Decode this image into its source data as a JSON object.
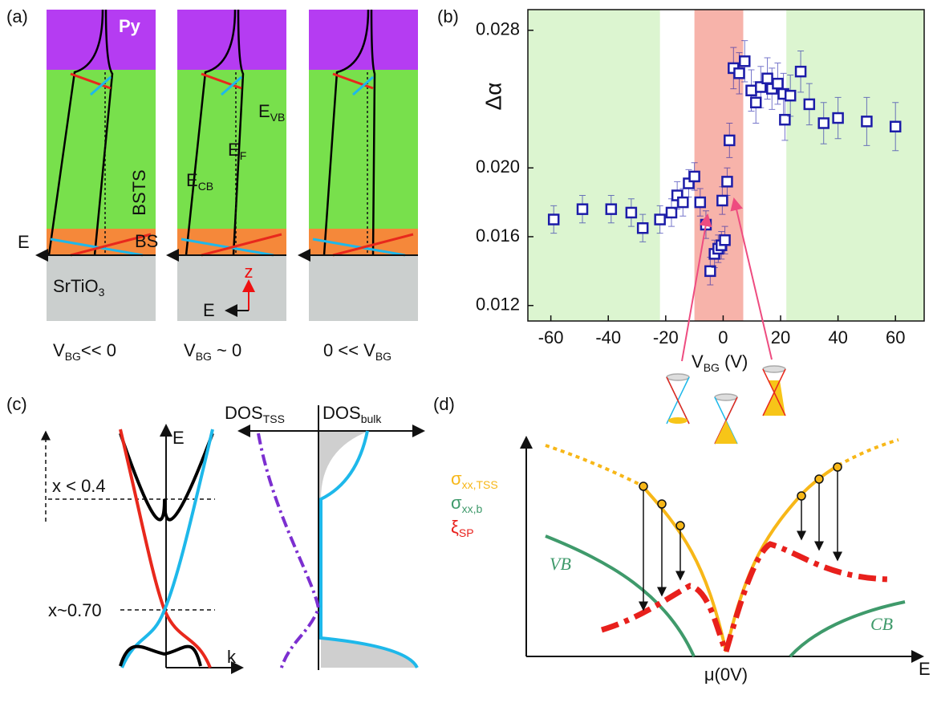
{
  "panels": {
    "a": {
      "label": "(a)",
      "py": "Py",
      "bsts": "BSTS",
      "bs": "BS",
      "substrate": {
        "main": "SrTiO",
        "sub": "3"
      },
      "axis_e": "E",
      "z": "z",
      "field_e": "E",
      "e_cb": {
        "main": "E",
        "sub": "CB"
      },
      "e_f": {
        "main": "E",
        "sub": "F"
      },
      "e_vb": {
        "main": "E",
        "sub": "VB"
      },
      "captions": [
        {
          "main": "V",
          "sub": "BG",
          "rest": "<< 0"
        },
        {
          "main": "V",
          "sub": "BG",
          "rest": " ~ 0"
        },
        {
          "main": "0 << V",
          "sub": "BG"
        }
      ]
    },
    "c": {
      "label": "(c)",
      "e": "E",
      "k": "k",
      "dos_tss": {
        "main": "DOS",
        "sub": "TSS"
      },
      "dos_bulk": {
        "main": "DOS",
        "sub": "bulk"
      },
      "x_low": "x < 0.4",
      "x_dirac": "x~0.70"
    },
    "d": {
      "label": "(d)",
      "sigma_tss": {
        "main": "σ",
        "sub": "xx,TSS"
      },
      "sigma_b": {
        "main": "σ",
        "sub": "xx,b"
      },
      "xi": {
        "main": "ξ",
        "sub": "SP"
      },
      "vb": "VB",
      "cb": "CB",
      "mu": "μ(0V)",
      "e": "E"
    }
  },
  "chart_data": {
    "type": "scatter",
    "panel_label": "(b)",
    "y_label": "Δα",
    "x_label": {
      "main": "V",
      "sub": "BG",
      "rest": " (V)"
    },
    "x": [
      -59,
      -49,
      -39,
      -32,
      -28,
      -22,
      -18,
      -16,
      -14,
      -12,
      -10,
      -8,
      -6,
      -4.5,
      -3,
      -1.7,
      -0.6,
      0.6,
      -0.3,
      1.4,
      2.2,
      3.6,
      5.6,
      7.5,
      9.8,
      11.4,
      13.1,
      15.4,
      17,
      19,
      21,
      21.5,
      23.4,
      27,
      30,
      35,
      40,
      50,
      60
    ],
    "series": [
      {
        "color": "#1c1ca8",
        "values": [
          0.017,
          0.0176,
          0.0176,
          0.0174,
          0.0165,
          0.017,
          0.0174,
          0.0184,
          0.018,
          0.0191,
          0.0195,
          0.018,
          0.0167,
          0.014,
          0.015,
          0.0153,
          0.0155,
          0.0158,
          0.0181,
          0.0192,
          0.0216,
          0.0258,
          0.0255,
          0.0262,
          0.0245,
          0.0238,
          0.0247,
          0.0252,
          0.0246,
          0.0249,
          0.0243,
          0.0228,
          0.0242,
          0.0256,
          0.0237,
          0.0226,
          0.0229,
          0.0227,
          0.0224
        ],
        "errors": [
          0.0008,
          0.0008,
          0.0008,
          0.0008,
          0.0008,
          0.0008,
          0.0008,
          0.0008,
          0.0008,
          0.0008,
          0.0008,
          0.0008,
          0.0008,
          0.0008,
          0.0008,
          0.0008,
          0.0008,
          0.0008,
          0.0008,
          0.0008,
          0.001,
          0.0012,
          0.0012,
          0.0012,
          0.0012,
          0.0012,
          0.0012,
          0.0012,
          0.0012,
          0.0012,
          0.0012,
          0.0012,
          0.0012,
          0.0012,
          0.0012,
          0.0012,
          0.0012,
          0.0014,
          0.0014
        ]
      }
    ],
    "regions": [
      {
        "from": -68,
        "to": -22,
        "color": "#dcf5d0"
      },
      {
        "from": -10,
        "to": 7,
        "color": "#f7b3aa"
      },
      {
        "from": 22,
        "to": 70,
        "color": "#dcf5d0"
      }
    ],
    "xlim": [
      -68,
      70
    ],
    "ylim": [
      0.0111,
      0.0292
    ],
    "xticks": [
      -60,
      -40,
      -20,
      0,
      20,
      40,
      60
    ],
    "yticks": [
      0.012,
      0.016,
      {
        "value": 0.02,
        "label": "0.020"
      },
      0.028
    ]
  }
}
